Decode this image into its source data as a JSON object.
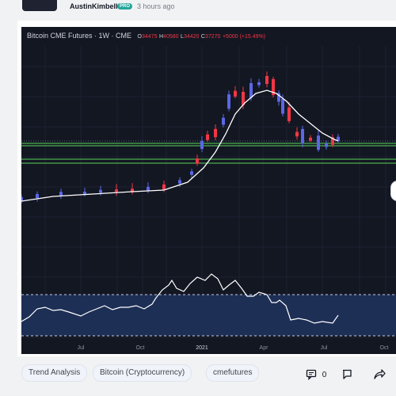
{
  "header": {
    "author": "AustinKimbell",
    "badge": "PRO",
    "time": "3 hours ago"
  },
  "chart": {
    "symbol": "Bitcoin CME Futures · 1W · CME",
    "open_label": "O",
    "open": "34475",
    "high_label": "H",
    "high": "40580",
    "low_label": "L",
    "low": "34420",
    "close_label": "C",
    "close": "37270",
    "change": "+5000 (+15.49%)",
    "colors": {
      "up": "#5b67e6",
      "down": "#f23645",
      "ma": "#ffffff",
      "support": "#4caf50",
      "osc_band": "#1e2f56"
    }
  },
  "chart_data": {
    "type": "candlestick",
    "xaxis_ticks": [
      "Jul",
      "Oct",
      "2021",
      "Apr",
      "Jul",
      "Oct"
    ]
  },
  "tags": [
    "Trend Analysis",
    "Bitcoin (Cryptocurrency)",
    "cmefutures"
  ],
  "actions": {
    "comments": "0"
  },
  "icons": [
    "comment-icon",
    "flag-icon",
    "share-icon"
  ]
}
